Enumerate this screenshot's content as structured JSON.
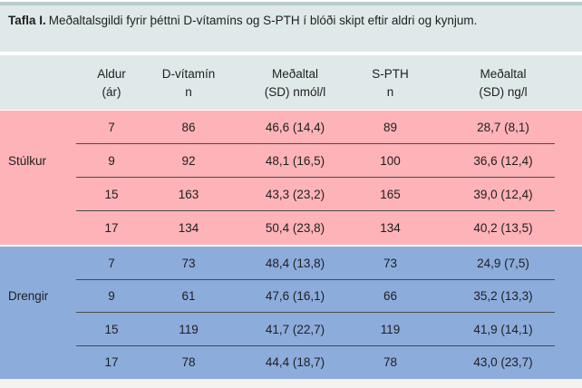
{
  "chart_data": {
    "type": "table",
    "title": "Tafla I. Meðaltalsgildi fyrir þéttni D-vítamíns og S-PTH í blóði skipt eftir aldri og kynjum.",
    "columns": [
      "Aldur (ár)",
      "D-vítamín n",
      "Meðaltal (SD) nmól/l",
      "S-PTH n",
      "Meðaltal (SD) ng/l"
    ],
    "groups": [
      {
        "name": "Stúlkur",
        "rows": [
          [
            "7",
            "86",
            "46,6 (14,4)",
            "89",
            "28,7 (8,1)"
          ],
          [
            "9",
            "92",
            "48,1 (16,5)",
            "100",
            "36,6 (12,4)"
          ],
          [
            "15",
            "163",
            "43,3 (23,2)",
            "165",
            "39,0 (12,4)"
          ],
          [
            "17",
            "134",
            "50,4 (23,8)",
            "134",
            "40,2 (13,5)"
          ]
        ]
      },
      {
        "name": "Drengir",
        "rows": [
          [
            "7",
            "73",
            "48,4 (13,8)",
            "73",
            "24,9 (7,5)"
          ],
          [
            "9",
            "61",
            "47,6 (16,1)",
            "66",
            "35,2 (13,3)"
          ],
          [
            "15",
            "119",
            "41,7 (22,7)",
            "119",
            "41,9 (14,1)"
          ],
          [
            "17",
            "78",
            "44,4 (18,7)",
            "78",
            "43,0 (23,7)"
          ]
        ]
      }
    ]
  },
  "title": {
    "bold": "Tafla I.",
    "rest": "Meðaltalsgildi fyrir þéttni D-vítamíns og S-PTH í blóði skipt eftir aldri og kynjum."
  },
  "header": {
    "columns": [
      {
        "line1": "Aldur",
        "line2": "(ár)"
      },
      {
        "line1": "D-vítamín",
        "line2": "n"
      },
      {
        "line1": "Meðaltal",
        "line2": "(SD) nmól/l"
      },
      {
        "line1": "S-PTH",
        "line2": "n"
      },
      {
        "line1": "Meðaltal",
        "line2": "(SD) ng/l"
      }
    ]
  },
  "groups": [
    {
      "name": "Stúlkur",
      "color": "#fdb3b7",
      "rows": [
        [
          "7",
          "86",
          "46,6 (14,4)",
          "89",
          "28,7 (8,1)"
        ],
        [
          "9",
          "92",
          "48,1 (16,5)",
          "100",
          "36,6 (12,4)"
        ],
        [
          "15",
          "163",
          "43,3 (23,2)",
          "165",
          "39,0 (12,4)"
        ],
        [
          "17",
          "134",
          "50,4 (23,8)",
          "134",
          "40,2 (13,5)"
        ]
      ]
    },
    {
      "name": "Drengir",
      "color": "#8cacdc",
      "rows": [
        [
          "7",
          "73",
          "48,4 (13,8)",
          "73",
          "24,9 (7,5)"
        ],
        [
          "9",
          "61",
          "47,6 (16,1)",
          "66",
          "35,2 (13,3)"
        ],
        [
          "15",
          "119",
          "41,7 (22,7)",
          "119",
          "41,9 (14,1)"
        ],
        [
          "17",
          "78",
          "44,4 (18,7)",
          "78",
          "43,0 (23,7)"
        ]
      ]
    }
  ],
  "colors": {
    "band_bg": "#dfe9e9",
    "girls_bg": "#fdb3b7",
    "boys_bg": "#8cacdc",
    "row_line": "#4a4a4a",
    "top_line": "#b8cdcd",
    "text": "#1f1f1f",
    "footer_bg": "#f3f2f0"
  }
}
